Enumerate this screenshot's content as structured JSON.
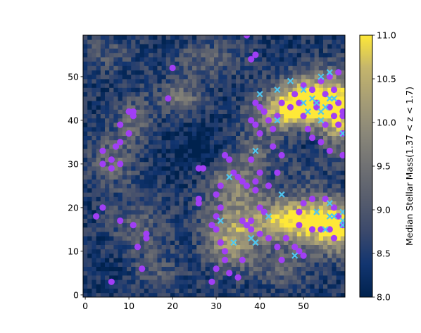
{
  "chart_data": {
    "type": "heatmap",
    "xlim": [
      -0.5,
      59.5
    ],
    "ylim": [
      -0.5,
      59.5
    ],
    "grid_size": [
      60,
      60
    ],
    "x_ticks": [
      0,
      10,
      20,
      30,
      40,
      50
    ],
    "y_ticks": [
      0,
      10,
      20,
      30,
      40,
      50
    ],
    "x_tick_labels": [
      "0",
      "10",
      "20",
      "30",
      "40",
      "50"
    ],
    "y_tick_labels": [
      "0",
      "10",
      "20",
      "30",
      "40",
      "50"
    ],
    "colormap": "cividis",
    "colorbar": {
      "label": "Median Stellar Mass(1.37 < z < 1.7)",
      "min": 8.0,
      "max": 11.0,
      "ticks": [
        8.0,
        8.5,
        9.0,
        9.5,
        10.0,
        10.5,
        11.0
      ],
      "tick_labels": [
        "8.0",
        "8.5",
        "9.0",
        "9.5",
        "10.0",
        "10.5",
        "11.0"
      ],
      "placement": "right"
    },
    "structure": {
      "baseline": 8.4,
      "regions": [
        {
          "x": 51,
          "y": 45,
          "sx": 5,
          "sy": 4,
          "amp": 2.6
        },
        {
          "x": 58,
          "y": 42,
          "sx": 3,
          "sy": 6,
          "amp": 2.2
        },
        {
          "x": 45,
          "y": 42,
          "sx": 5,
          "sy": 3,
          "amp": 1.6
        },
        {
          "x": 53,
          "y": 17,
          "sx": 5,
          "sy": 4,
          "amp": 2.3
        },
        {
          "x": 58,
          "y": 15,
          "sx": 3,
          "sy": 4,
          "amp": 2.0
        },
        {
          "x": 46,
          "y": 17,
          "sx": 4,
          "sy": 3,
          "amp": 1.5
        },
        {
          "x": 36,
          "y": 17,
          "sx": 6,
          "sy": 5,
          "amp": 1.5
        },
        {
          "x": 34,
          "y": 26,
          "sx": 4,
          "sy": 3,
          "amp": 1.2
        },
        {
          "x": 33,
          "y": 11,
          "sx": 4,
          "sy": 4,
          "amp": 1.1
        },
        {
          "x": 40,
          "y": 33,
          "sx": 5,
          "sy": 4,
          "amp": 0.9
        },
        {
          "x": 22,
          "y": 45,
          "sx": 4,
          "sy": 3,
          "amp": 1.1
        },
        {
          "x": 11,
          "y": 40,
          "sx": 3,
          "sy": 4,
          "amp": 0.9
        },
        {
          "x": 6,
          "y": 31,
          "sx": 4,
          "sy": 4,
          "amp": 0.9
        },
        {
          "x": 12,
          "y": 15,
          "sx": 5,
          "sy": 6,
          "amp": 0.8
        },
        {
          "x": 28,
          "y": 54,
          "sx": 6,
          "sy": 3,
          "amp": 0.7
        },
        {
          "x": 16,
          "y": 5,
          "sx": 4,
          "sy": 3,
          "amp": 0.6
        },
        {
          "x": 45,
          "y": 6,
          "sx": 5,
          "sy": 3,
          "amp": 0.7
        },
        {
          "x": 5,
          "y": 55,
          "sx": 4,
          "sy": 3,
          "amp": 0.6
        },
        {
          "x": 50,
          "y": 28,
          "sx": 3,
          "sy": 3,
          "amp": 0.5
        }
      ],
      "voids": [
        {
          "x": 25,
          "y": 35,
          "sx": 5,
          "sy": 5,
          "amp": 0.4
        },
        {
          "x": 48,
          "y": 32,
          "sx": 5,
          "sy": 4,
          "amp": 0.35
        },
        {
          "x": 8,
          "y": 8,
          "sx": 5,
          "sy": 4,
          "amp": 0.3
        }
      ]
    },
    "series": [
      {
        "marker": "circle",
        "color": "#a13ef5",
        "points": [
          [
            37,
            59.5
          ],
          [
            38,
            54
          ],
          [
            39,
            55
          ],
          [
            20,
            52
          ],
          [
            19,
            45
          ],
          [
            8,
            39
          ],
          [
            10,
            42
          ],
          [
            11,
            42
          ],
          [
            11,
            41
          ],
          [
            10,
            37
          ],
          [
            8,
            35
          ],
          [
            7,
            34
          ],
          [
            4,
            33
          ],
          [
            6,
            31
          ],
          [
            8,
            30
          ],
          [
            4,
            30
          ],
          [
            6,
            29
          ],
          [
            2.5,
            18
          ],
          [
            4,
            20
          ],
          [
            8,
            17
          ],
          [
            11,
            16
          ],
          [
            12,
            11
          ],
          [
            14,
            14
          ],
          [
            14,
            13
          ],
          [
            13,
            6
          ],
          [
            6,
            3
          ],
          [
            26,
            29
          ],
          [
            27,
            29
          ],
          [
            26,
            22
          ],
          [
            26,
            21
          ],
          [
            29,
            3
          ],
          [
            32,
            32
          ],
          [
            33,
            31
          ],
          [
            34,
            28
          ],
          [
            35,
            27
          ],
          [
            36,
            26
          ],
          [
            37,
            25
          ],
          [
            31,
            25
          ],
          [
            30,
            23
          ],
          [
            31,
            20
          ],
          [
            30,
            18
          ],
          [
            29,
            16
          ],
          [
            30,
            15
          ],
          [
            31,
            12
          ],
          [
            32,
            10
          ],
          [
            32,
            8
          ],
          [
            30,
            6
          ],
          [
            33,
            5
          ],
          [
            35,
            4
          ],
          [
            36,
            8
          ],
          [
            38,
            15
          ],
          [
            38,
            17
          ],
          [
            36,
            17
          ],
          [
            37,
            16
          ],
          [
            40,
            20
          ],
          [
            41,
            19
          ],
          [
            40,
            14
          ],
          [
            42,
            13
          ],
          [
            44,
            11
          ],
          [
            45,
            8
          ],
          [
            46,
            13
          ],
          [
            48,
            11
          ],
          [
            49,
            16
          ],
          [
            49,
            19
          ],
          [
            50,
            21
          ],
          [
            52,
            22
          ],
          [
            55,
            22
          ],
          [
            57,
            20
          ],
          [
            58,
            18
          ],
          [
            59,
            16
          ],
          [
            56,
            15
          ],
          [
            57,
            13
          ],
          [
            50,
            9
          ],
          [
            49,
            10
          ],
          [
            52,
            15
          ],
          [
            54,
            15
          ],
          [
            38,
            31
          ],
          [
            39,
            26
          ],
          [
            40,
            28
          ],
          [
            39,
            24
          ],
          [
            42,
            25
          ],
          [
            44,
            28
          ],
          [
            45,
            32
          ],
          [
            43,
            34
          ],
          [
            42,
            40
          ],
          [
            43,
            38
          ],
          [
            44,
            41
          ],
          [
            45,
            44
          ],
          [
            47,
            43
          ],
          [
            49,
            44
          ],
          [
            50,
            41
          ],
          [
            51,
            38
          ],
          [
            52,
            36
          ],
          [
            54,
            35
          ],
          [
            56,
            33
          ],
          [
            55,
            39
          ],
          [
            57,
            41
          ],
          [
            58,
            39
          ],
          [
            59,
            37
          ],
          [
            59,
            32
          ],
          [
            59,
            41
          ],
          [
            48,
            46
          ],
          [
            50,
            48
          ],
          [
            52,
            47
          ],
          [
            54,
            49
          ],
          [
            56,
            50
          ],
          [
            58,
            51
          ],
          [
            57,
            47
          ],
          [
            55,
            46
          ],
          [
            53,
            44
          ],
          [
            39,
            44
          ],
          [
            40,
            43
          ],
          [
            41,
            42
          ],
          [
            38,
            40
          ],
          [
            39,
            39
          ],
          [
            40,
            37
          ],
          [
            53,
            43
          ],
          [
            56,
            43
          ],
          [
            58,
            44
          ],
          [
            59,
            42
          ]
        ]
      },
      {
        "marker": "x",
        "color": "#4fc6f0",
        "points": [
          [
            33,
            27
          ],
          [
            31,
            17
          ],
          [
            34,
            12
          ],
          [
            38,
            13
          ],
          [
            39,
            12
          ],
          [
            42,
            18
          ],
          [
            45,
            23
          ],
          [
            48,
            9
          ],
          [
            53,
            19
          ],
          [
            55,
            15
          ],
          [
            56,
            18
          ],
          [
            57,
            18
          ],
          [
            56,
            21
          ],
          [
            59,
            19
          ],
          [
            59,
            17
          ],
          [
            59,
            16
          ],
          [
            39,
            33
          ],
          [
            40,
            46
          ],
          [
            44,
            47
          ],
          [
            44,
            40
          ],
          [
            47,
            49
          ],
          [
            50,
            44
          ],
          [
            50,
            47
          ],
          [
            51,
            42
          ],
          [
            52,
            45
          ],
          [
            53,
            44
          ],
          [
            54,
            40
          ],
          [
            54,
            42
          ],
          [
            55,
            43
          ],
          [
            56,
            45
          ],
          [
            57,
            45
          ],
          [
            54,
            50
          ],
          [
            56,
            51
          ],
          [
            59,
            37
          ]
        ]
      }
    ]
  }
}
